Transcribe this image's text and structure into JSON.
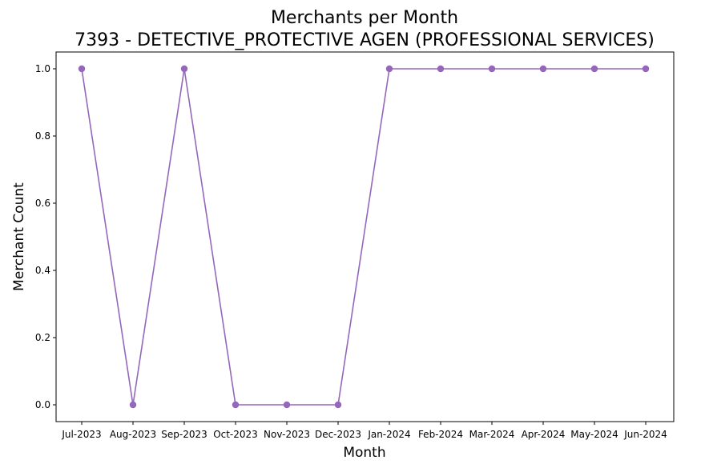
{
  "chart_data": {
    "type": "line",
    "title": "Merchants per Month",
    "subtitle": "7393 - DETECTIVE_PROTECTIVE AGEN (PROFESSIONAL SERVICES)",
    "xlabel": "Month",
    "ylabel": "Merchant Count",
    "categories": [
      "Jul-2023",
      "Aug-2023",
      "Sep-2023",
      "Oct-2023",
      "Nov-2023",
      "Dec-2023",
      "Jan-2024",
      "Feb-2024",
      "Mar-2024",
      "Apr-2024",
      "May-2024",
      "Jun-2024"
    ],
    "series": [
      {
        "values": [
          1,
          0,
          1,
          0,
          0,
          0,
          1,
          1,
          1,
          1,
          1,
          1
        ],
        "color": "#9467bd",
        "marker": "circle"
      }
    ],
    "ylim": [
      -0.05,
      1.05
    ],
    "yticks": [
      "0.0",
      "0.2",
      "0.4",
      "0.6",
      "0.8",
      "1.0"
    ],
    "grid": false,
    "legend": "none"
  }
}
